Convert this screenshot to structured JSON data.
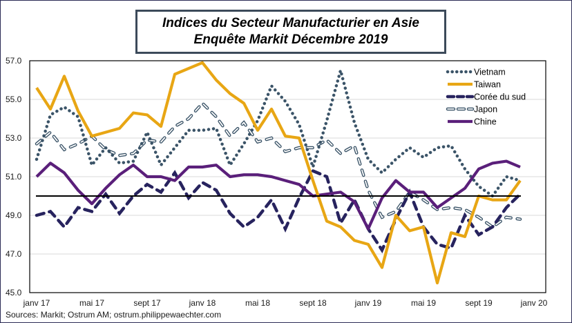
{
  "title_line1": "Indices du Secteur Manufacturier en Asie",
  "title_line2": "Enquête Markit Décembre 2019",
  "source": "Sources: Markit; Ostrum AM; ostrum.philippewaechter.com",
  "chart_data": {
    "type": "line",
    "title": "Indices du Secteur Manufacturier en Asie - Enquête Markit Décembre 2019",
    "xlabel": "",
    "ylabel": "",
    "ylim": [
      45.0,
      57.0
    ],
    "yticks": [
      "45.0",
      "47.0",
      "49.0",
      "51.0",
      "53.0",
      "55.0",
      "57.0"
    ],
    "xtick_labels": [
      "janv 17",
      "mai 17",
      "sept 17",
      "janv 18",
      "mai 18",
      "sept 18",
      "janv 19",
      "mai 19",
      "sept 19",
      "janv 20"
    ],
    "x_start": "janv 17",
    "x_months": 36,
    "reference_line": 50.0,
    "grid": "horizontal",
    "legend_position": "top-right",
    "series": [
      {
        "name": "Vietnam",
        "style": "dotted",
        "color": "#3b5468",
        "values": [
          51.9,
          54.2,
          54.6,
          54.1,
          51.6,
          52.5,
          51.7,
          51.8,
          53.3,
          51.6,
          52.5,
          53.4,
          53.4,
          53.5,
          51.6,
          52.7,
          53.9,
          55.7,
          54.9,
          53.7,
          51.5,
          53.9,
          56.5,
          53.8,
          51.9,
          51.2,
          51.9,
          52.5,
          52.0,
          52.5,
          52.6,
          51.4,
          50.5,
          50.0,
          51.0,
          50.8
        ]
      },
      {
        "name": "Taiwan",
        "style": "solid",
        "color": "#e8a614",
        "values": [
          55.6,
          54.5,
          56.2,
          54.4,
          53.1,
          53.3,
          53.5,
          54.3,
          54.2,
          53.6,
          56.3,
          56.6,
          56.9,
          56.0,
          55.3,
          54.8,
          53.4,
          54.5,
          53.1,
          53.0,
          50.8,
          48.7,
          48.4,
          47.7,
          47.5,
          46.3,
          49.0,
          48.2,
          48.4,
          45.5,
          48.1,
          47.9,
          50.0,
          49.8,
          49.8,
          50.8
        ]
      },
      {
        "name": "Corée du sud",
        "style": "dashed",
        "color": "#27235e",
        "values": [
          49.0,
          49.2,
          48.4,
          49.4,
          49.2,
          50.1,
          49.1,
          50.0,
          50.6,
          50.2,
          51.2,
          49.9,
          50.7,
          50.3,
          49.1,
          48.4,
          48.9,
          49.8,
          48.3,
          49.9,
          51.3,
          51.0,
          48.6,
          49.8,
          48.3,
          47.2,
          48.8,
          50.2,
          48.4,
          47.5,
          47.3,
          49.0,
          48.0,
          48.4,
          49.4,
          50.1
        ]
      },
      {
        "name": "Japon",
        "style": "hollow-dashed",
        "color": "#3b5468",
        "values": [
          52.7,
          53.3,
          52.4,
          52.7,
          53.1,
          52.4,
          52.1,
          52.2,
          52.9,
          52.8,
          53.6,
          54.0,
          54.8,
          54.1,
          53.1,
          53.8,
          52.8,
          53.0,
          52.3,
          52.5,
          52.5,
          52.9,
          52.2,
          52.6,
          50.3,
          48.9,
          49.2,
          50.2,
          49.8,
          49.3,
          49.4,
          49.3,
          48.9,
          48.4,
          48.9,
          48.8
        ]
      },
      {
        "name": "Chine",
        "style": "solid",
        "color": "#5a1f7a",
        "values": [
          51.0,
          51.7,
          51.2,
          50.3,
          49.6,
          50.4,
          51.1,
          51.6,
          51.0,
          51.0,
          50.8,
          51.5,
          51.5,
          51.6,
          51.0,
          51.1,
          51.1,
          51.0,
          50.8,
          50.6,
          50.0,
          50.1,
          50.2,
          49.7,
          48.3,
          49.9,
          50.8,
          50.2,
          50.2,
          49.4,
          49.9,
          50.4,
          51.4,
          51.7,
          51.8,
          51.5
        ]
      }
    ]
  }
}
